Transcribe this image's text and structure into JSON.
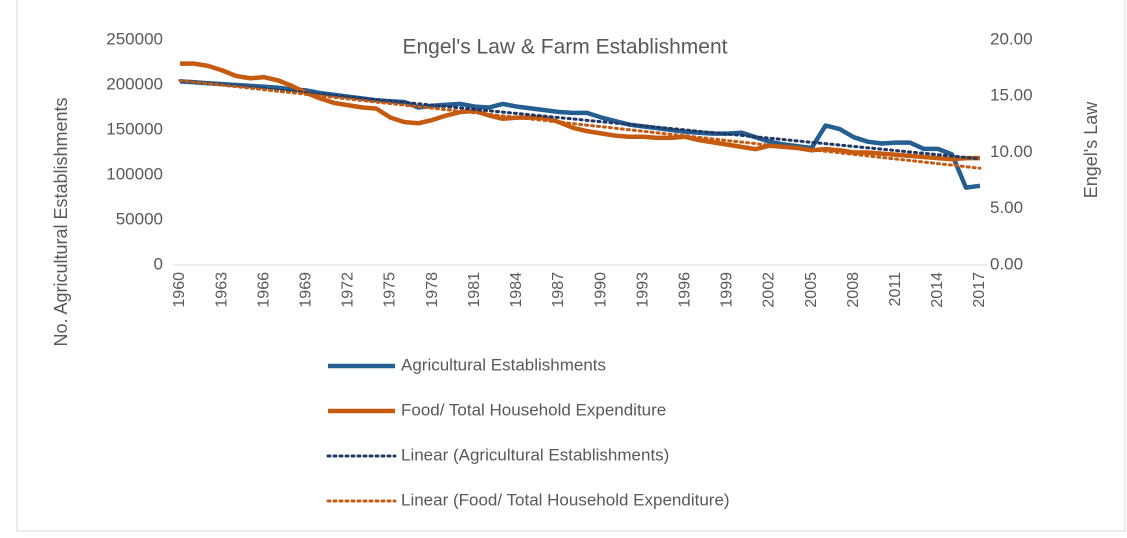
{
  "chart_data": {
    "type": "line",
    "title": "Engel's Law & Farm Establishment",
    "y_label": "No. Agricultural Establishments",
    "y2_label": "Engel's Law",
    "categories": [
      "1960",
      null,
      null,
      "1963",
      null,
      null,
      "1966",
      null,
      null,
      "1969",
      null,
      null,
      "1972",
      null,
      null,
      "1975",
      null,
      null,
      "1978",
      null,
      null,
      "1981",
      null,
      null,
      "1984",
      null,
      null,
      "1987",
      null,
      null,
      "1990",
      null,
      null,
      "1993",
      null,
      null,
      "1996",
      null,
      null,
      "1999",
      null,
      null,
      "2002",
      null,
      null,
      "2005",
      null,
      null,
      "2008",
      null,
      null,
      "2011",
      null,
      null,
      "2014",
      null,
      null,
      "2017"
    ],
    "ylim": [
      0,
      250000
    ],
    "yticks": [
      0,
      50000,
      100000,
      150000,
      200000,
      250000
    ],
    "y2lim": [
      0,
      20
    ],
    "y2ticks": [
      {
        "value": 0,
        "label": "0.00"
      },
      {
        "value": 5,
        "label": "5.00"
      },
      {
        "value": 10,
        "label": "10.00"
      },
      {
        "value": 15,
        "label": "15.00"
      },
      {
        "value": 20,
        "label": "20.00"
      }
    ],
    "legend": "bottom",
    "series": [
      {
        "name": "Agricultural Establishments",
        "color": "#255e91",
        "dash": "solid",
        "values": [
          204000,
          203000,
          202000,
          201000,
          200000,
          199000,
          198000,
          197000,
          195000,
          194000,
          191000,
          189000,
          187000,
          185000,
          183000,
          182000,
          181000,
          175000,
          177000,
          178000,
          179000,
          176000,
          175000,
          179000,
          176000,
          174000,
          172000,
          170000,
          169000,
          169000,
          164000,
          160000,
          156000,
          154000,
          152000,
          150000,
          148000,
          147000,
          146000,
          146000,
          147000,
          142000,
          137000,
          134000,
          132000,
          130000,
          155000,
          151000,
          142000,
          137000,
          135000,
          136000,
          136000,
          129000,
          129000,
          123000,
          86000,
          88000
        ]
      },
      {
        "name": "Food/ Total Household Expenditure",
        "color": "#c55a11",
        "dash": "solid",
        "axis": "y2",
        "values": [
          17.9,
          17.9,
          17.7,
          17.3,
          16.8,
          16.6,
          16.7,
          16.4,
          15.9,
          15.3,
          14.8,
          14.4,
          14.2,
          14.0,
          13.9,
          13.1,
          12.7,
          12.6,
          12.9,
          13.3,
          13.6,
          13.7,
          13.3,
          13.0,
          13.1,
          13.1,
          13.1,
          12.7,
          12.2,
          11.9,
          11.7,
          11.5,
          11.4,
          11.4,
          11.3,
          11.3,
          11.4,
          11.1,
          10.9,
          10.7,
          10.5,
          10.3,
          10.6,
          10.5,
          10.4,
          10.2,
          10.3,
          10.2,
          10.0,
          10.0,
          9.9,
          9.8,
          9.7,
          9.6,
          9.5,
          9.4,
          9.5,
          9.5
        ]
      },
      {
        "name": "Linear (Agricultural Establishments)",
        "color": "#203864",
        "dash": "dotted",
        "values": [
          205000,
          203500,
          201900,
          200400,
          198900,
          197400,
          195800,
          194300,
          192800,
          191300,
          189700,
          188200,
          186700,
          185200,
          183600,
          182100,
          180600,
          179100,
          177500,
          176000,
          174500,
          172900,
          171400,
          169900,
          168400,
          166800,
          165300,
          163800,
          162300,
          160700,
          159200,
          157700,
          156200,
          154600,
          153100,
          151600,
          150100,
          148500,
          147000,
          145500,
          144000,
          142400,
          140900,
          139400,
          137800,
          136300,
          134800,
          133300,
          131700,
          130200,
          128700,
          127200,
          125600,
          124100,
          122600,
          121100,
          119500,
          118000
        ]
      },
      {
        "name": "Linear (Food/ Total Household Expenditure)",
        "color": "#c55a11",
        "dash": "dotted",
        "axis": "y2",
        "values": [
          16.4,
          16.26,
          16.13,
          15.99,
          15.85,
          15.72,
          15.58,
          15.44,
          15.31,
          15.17,
          15.03,
          14.9,
          14.76,
          14.62,
          14.48,
          14.35,
          14.21,
          14.07,
          13.94,
          13.8,
          13.66,
          13.53,
          13.39,
          13.25,
          13.12,
          12.98,
          12.84,
          12.71,
          12.57,
          12.43,
          12.3,
          12.16,
          12.02,
          11.89,
          11.75,
          11.61,
          11.48,
          11.34,
          11.2,
          11.06,
          10.93,
          10.79,
          10.65,
          10.52,
          10.38,
          10.24,
          10.11,
          9.97,
          9.83,
          9.7,
          9.56,
          9.42,
          9.29,
          9.15,
          9.01,
          8.88,
          8.74,
          8.6
        ]
      }
    ]
  }
}
